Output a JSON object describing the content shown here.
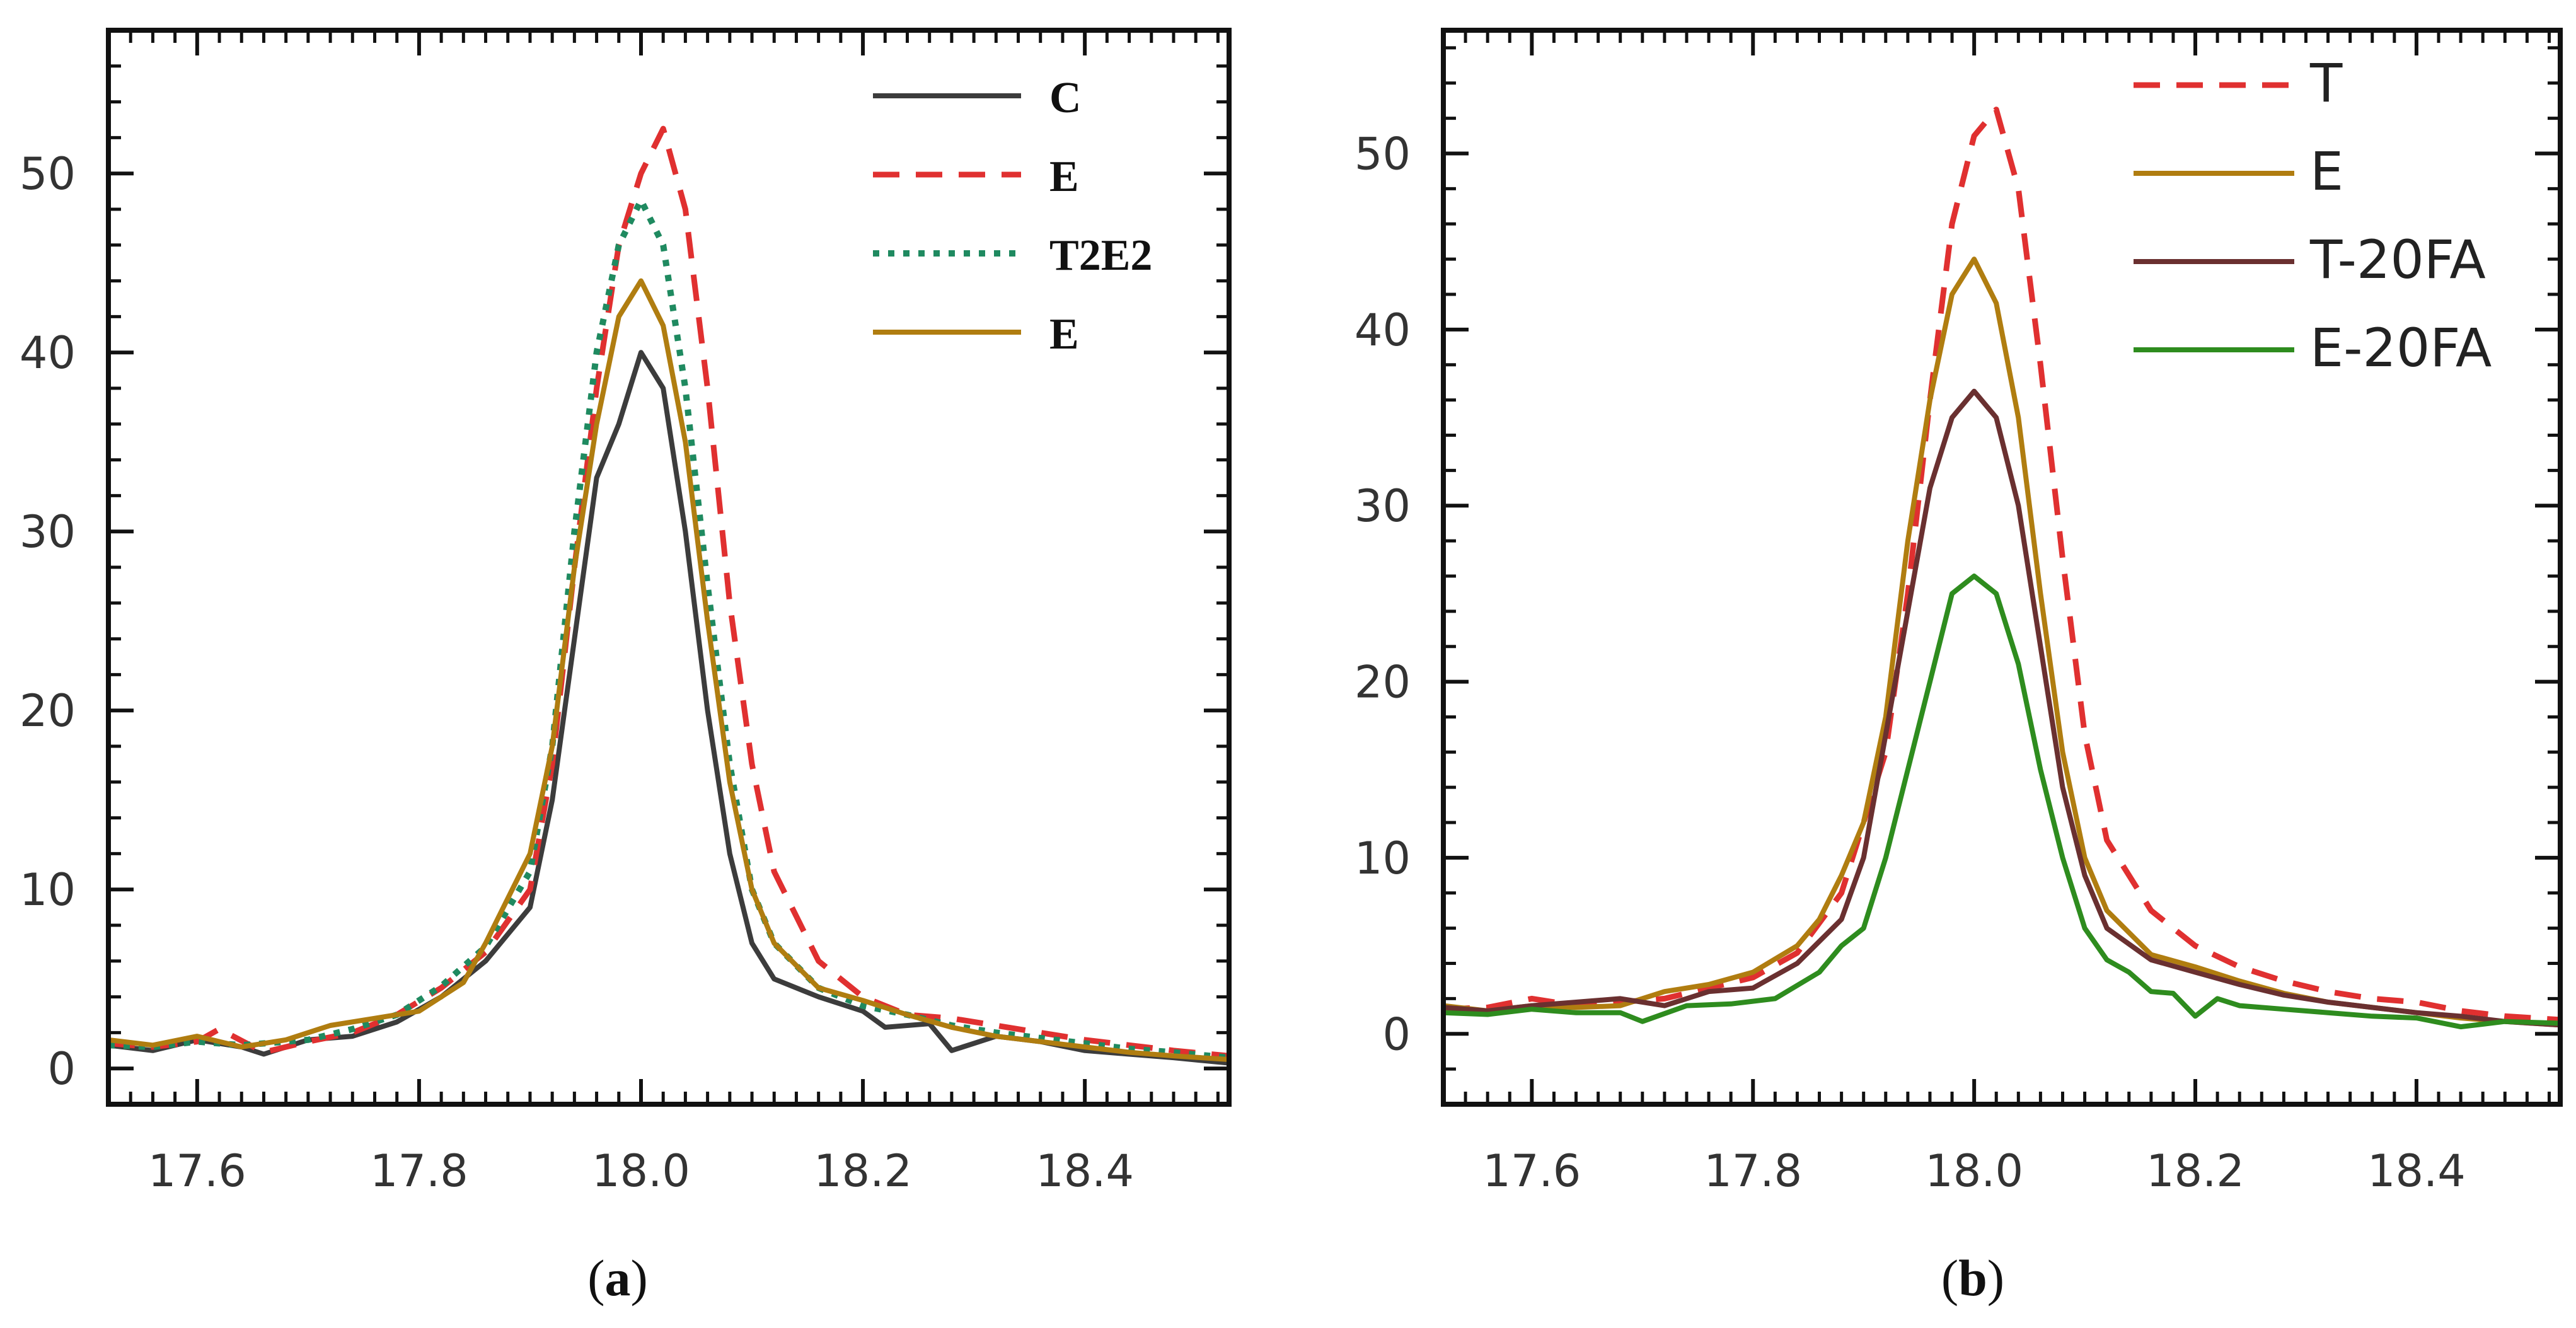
{
  "chart_data": [
    {
      "id": "a",
      "type": "line",
      "caption_open": "(",
      "caption_letter": "a",
      "caption_close": ")",
      "xlim": [
        17.52,
        18.53
      ],
      "ylim": [
        -2,
        58
      ],
      "xticks": [
        17.6,
        17.8,
        18.0,
        18.2,
        18.4
      ],
      "xtick_labels": [
        "17.6",
        "17.8",
        "18.0",
        "18.2",
        "18.4"
      ],
      "yticks": [
        0,
        10,
        20,
        30,
        40,
        50
      ],
      "ytick_labels": [
        "0",
        "10",
        "20",
        "30",
        "40",
        "50"
      ],
      "legend_position": "top-right",
      "legend_style": "serif",
      "series": [
        {
          "name": "C",
          "color": "#3c3c3c",
          "dash": "solid",
          "x": [
            17.52,
            17.56,
            17.6,
            17.64,
            17.66,
            17.7,
            17.74,
            17.78,
            17.82,
            17.86,
            17.9,
            17.92,
            17.94,
            17.96,
            17.98,
            18.0,
            18.02,
            18.04,
            18.06,
            18.08,
            18.1,
            18.12,
            18.16,
            18.2,
            18.22,
            18.26,
            18.28,
            18.32,
            18.36,
            18.4,
            18.44,
            18.48,
            18.53
          ],
          "y": [
            1.3,
            1.0,
            1.6,
            1.2,
            0.8,
            1.6,
            1.8,
            2.6,
            4.0,
            6.0,
            9.0,
            15,
            24,
            33,
            36,
            40,
            38,
            30,
            20,
            12,
            7,
            5,
            4,
            3.2,
            2.3,
            2.5,
            1.0,
            1.8,
            1.5,
            1.0,
            0.8,
            0.6,
            0.3
          ]
        },
        {
          "name": "E",
          "color": "#e03030",
          "dash": "dashed",
          "x": [
            17.52,
            17.56,
            17.6,
            17.62,
            17.66,
            17.7,
            17.74,
            17.78,
            17.82,
            17.86,
            17.9,
            17.92,
            17.94,
            17.96,
            17.98,
            18.0,
            18.02,
            18.04,
            18.06,
            18.08,
            18.1,
            18.12,
            18.16,
            18.2,
            18.24,
            18.28,
            18.32,
            18.36,
            18.4,
            18.44,
            18.48,
            18.53
          ],
          "y": [
            1.4,
            1.2,
            1.5,
            2.2,
            0.9,
            1.5,
            2.0,
            3.0,
            4.5,
            6.5,
            10,
            17,
            28,
            38,
            46,
            50,
            52.5,
            48,
            38,
            26,
            17,
            11,
            6,
            4,
            3,
            2.8,
            2.4,
            2.0,
            1.6,
            1.3,
            1.0,
            0.7
          ]
        },
        {
          "name": "T2E2",
          "color": "#1f8a60",
          "dash": "dotted",
          "x": [
            17.52,
            17.56,
            17.6,
            17.64,
            17.7,
            17.74,
            17.78,
            17.82,
            17.86,
            17.9,
            17.92,
            17.94,
            17.96,
            17.98,
            18.0,
            18.02,
            18.04,
            18.06,
            18.08,
            18.1,
            18.12,
            18.16,
            18.2,
            18.24,
            18.28,
            18.32,
            18.36,
            18.4,
            18.44,
            18.48,
            18.53
          ],
          "y": [
            1.3,
            1.2,
            1.5,
            1.3,
            1.6,
            2.2,
            3.0,
            4.6,
            6.8,
            11,
            18,
            30,
            40,
            46,
            48.5,
            46,
            38,
            27,
            17,
            10,
            7,
            4.5,
            3.5,
            3.0,
            2.4,
            2.0,
            1.7,
            1.4,
            1.1,
            0.9,
            0.6
          ]
        },
        {
          "name": "E",
          "color": "#b07d10",
          "dash": "solid",
          "x": [
            17.52,
            17.56,
            17.6,
            17.64,
            17.68,
            17.72,
            17.76,
            17.8,
            17.84,
            17.86,
            17.88,
            17.9,
            17.92,
            17.94,
            17.96,
            17.98,
            18.0,
            18.02,
            18.04,
            18.06,
            18.08,
            18.1,
            18.12,
            18.16,
            18.2,
            18.24,
            18.28,
            18.32,
            18.36,
            18.4,
            18.44,
            18.48,
            18.53
          ],
          "y": [
            1.6,
            1.3,
            1.8,
            1.2,
            1.6,
            2.4,
            2.8,
            3.2,
            4.8,
            7,
            9.5,
            12,
            18,
            28,
            36,
            42,
            44,
            41.5,
            35,
            25,
            16,
            10,
            7,
            4.5,
            3.8,
            3.0,
            2.3,
            1.8,
            1.5,
            1.2,
            0.9,
            0.7,
            0.5
          ]
        }
      ]
    },
    {
      "id": "b",
      "type": "line",
      "caption_open": "(",
      "caption_letter": "b",
      "caption_close": ")",
      "xlim": [
        17.52,
        18.53
      ],
      "ylim": [
        -4,
        57
      ],
      "xticks": [
        17.6,
        17.8,
        18.0,
        18.2,
        18.4
      ],
      "xtick_labels": [
        "17.6",
        "17.8",
        "18.0",
        "18.2",
        "18.4"
      ],
      "yticks": [
        0,
        10,
        20,
        30,
        40,
        50
      ],
      "ytick_labels": [
        "0",
        "10",
        "20",
        "30",
        "40",
        "50"
      ],
      "legend_position": "top-right",
      "legend_style": "sans",
      "series": [
        {
          "name": "T",
          "color": "#e03030",
          "dash": "dashed",
          "x": [
            17.52,
            17.56,
            17.6,
            17.64,
            17.68,
            17.72,
            17.76,
            17.8,
            17.84,
            17.88,
            17.92,
            17.94,
            17.96,
            17.98,
            18.0,
            18.02,
            18.04,
            18.06,
            18.08,
            18.1,
            18.12,
            18.16,
            18.2,
            18.24,
            18.28,
            18.32,
            18.36,
            18.4,
            18.44,
            18.48,
            18.53
          ],
          "y": [
            1.4,
            1.5,
            2.0,
            1.6,
            1.8,
            2.0,
            2.6,
            3.2,
            4.6,
            8,
            16,
            25,
            36,
            46,
            51,
            52.5,
            48,
            38,
            27,
            17,
            11,
            7,
            5,
            3.8,
            3.0,
            2.4,
            2.0,
            1.8,
            1.3,
            1.0,
            0.8
          ]
        },
        {
          "name": "E",
          "color": "#b07d10",
          "dash": "solid",
          "x": [
            17.52,
            17.56,
            17.6,
            17.64,
            17.68,
            17.72,
            17.76,
            17.8,
            17.84,
            17.86,
            17.88,
            17.9,
            17.92,
            17.94,
            17.96,
            17.98,
            18.0,
            18.02,
            18.04,
            18.06,
            18.08,
            18.1,
            18.12,
            18.16,
            18.2,
            18.24,
            18.28,
            18.32,
            18.36,
            18.4,
            18.44,
            18.48,
            18.53
          ],
          "y": [
            1.6,
            1.3,
            1.6,
            1.5,
            1.6,
            2.4,
            2.8,
            3.5,
            5,
            6.5,
            9,
            12,
            18,
            28,
            36,
            42,
            44,
            41.5,
            35,
            25,
            16,
            10,
            7,
            4.5,
            3.8,
            3.0,
            2.3,
            1.8,
            1.5,
            1.2,
            0.9,
            0.7,
            0.5
          ]
        },
        {
          "name": "T-20FA",
          "color": "#6a3030",
          "dash": "solid",
          "x": [
            17.52,
            17.56,
            17.6,
            17.64,
            17.68,
            17.72,
            17.76,
            17.8,
            17.84,
            17.88,
            17.9,
            17.92,
            17.94,
            17.96,
            17.98,
            18.0,
            18.02,
            18.04,
            18.06,
            18.08,
            18.1,
            18.12,
            18.16,
            18.2,
            18.24,
            18.28,
            18.32,
            18.36,
            18.4,
            18.44,
            18.48,
            18.53
          ],
          "y": [
            1.5,
            1.3,
            1.6,
            1.8,
            2.0,
            1.6,
            2.4,
            2.6,
            4.0,
            6.5,
            10,
            17,
            24,
            31,
            35,
            36.5,
            35,
            30,
            22,
            14,
            9,
            6,
            4.2,
            3.5,
            2.8,
            2.2,
            1.8,
            1.5,
            1.2,
            1.0,
            0.7,
            0.5
          ]
        },
        {
          "name": "E-20FA",
          "color": "#2e8c1e",
          "dash": "solid",
          "x": [
            17.52,
            17.56,
            17.6,
            17.64,
            17.68,
            17.7,
            17.74,
            17.78,
            17.82,
            17.86,
            17.88,
            17.9,
            17.92,
            17.94,
            17.96,
            17.98,
            18.0,
            18.02,
            18.04,
            18.06,
            18.08,
            18.1,
            18.12,
            18.14,
            18.16,
            18.18,
            18.2,
            18.22,
            18.24,
            18.28,
            18.32,
            18.36,
            18.4,
            18.44,
            18.48,
            18.53
          ],
          "y": [
            1.2,
            1.1,
            1.4,
            1.2,
            1.2,
            0.7,
            1.6,
            1.7,
            2.0,
            3.5,
            5,
            6,
            10,
            15,
            20,
            25,
            26,
            25,
            21,
            15,
            10,
            6,
            4.2,
            3.5,
            2.4,
            2.3,
            1.0,
            2.0,
            1.6,
            1.4,
            1.2,
            1.0,
            0.9,
            0.4,
            0.7,
            0.6
          ]
        }
      ]
    }
  ]
}
